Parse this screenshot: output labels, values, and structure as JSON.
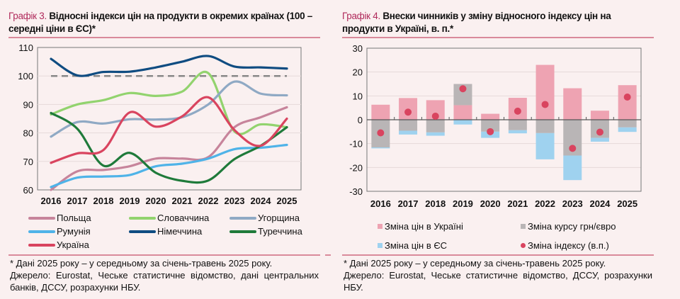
{
  "left": {
    "title_num": "Графік 3.",
    "title": "Відносні індекси цін на продукти в окремих країнах (100 – середні ціни в ЄС)*",
    "note": "* Дані 2025 року – у середньому за січень-травень 2025 року.",
    "source": "Джерело: Eurostat, Чеське статистичне відомство, дані центральних банків, ДССУ, розрахунки НБУ."
  },
  "right": {
    "title_num": "Графік 4.",
    "title": "Внески чинників у зміну відносного індексу цін на продукти в Україні, в. п.*",
    "note": "* Дані 2025 року – у середньому за січень-травень 2025 року.",
    "source": "Джерело: Eurostat, Чеське статистичне відомство, ДССУ, розрахунки НБУ."
  },
  "chart_data": [
    {
      "type": "line",
      "categories": [
        "2016",
        "2017",
        "2018",
        "2019",
        "2020",
        "2021",
        "2022",
        "2023",
        "2024",
        "2025"
      ],
      "ylim": [
        60,
        110
      ],
      "yticks": [
        "60",
        "70",
        "80",
        "90",
        "100",
        "110"
      ],
      "reference_line": 100,
      "grid": true,
      "legend_position": "bottom",
      "series": [
        {
          "name": "Польща",
          "color": "#c7849b",
          "values": [
            60,
            66.5,
            67,
            68.3,
            71,
            71,
            71.5,
            82,
            85.5,
            89
          ]
        },
        {
          "name": "Словаччина",
          "color": "#92d36e",
          "values": [
            86.5,
            90,
            91.5,
            94,
            93,
            94.5,
            101,
            80.5,
            83,
            82
          ]
        },
        {
          "name": "Угорщина",
          "color": "#8fa9c4",
          "values": [
            78.7,
            83.8,
            83.3,
            84.8,
            84.7,
            85.5,
            90,
            98,
            93.8,
            93.2
          ]
        },
        {
          "name": "Румунія",
          "color": "#4fb3e8",
          "values": [
            61,
            64.3,
            64.7,
            65.2,
            68.3,
            69.2,
            71,
            74.3,
            74.8,
            75.8
          ]
        },
        {
          "name": "Німеччина",
          "color": "#0f4c81",
          "values": [
            106,
            100.2,
            101.4,
            101.5,
            103,
            105,
            107,
            103.3,
            103,
            102.6
          ]
        },
        {
          "name": "Туреччина",
          "color": "#1f7a3a",
          "values": [
            87,
            81.5,
            68.5,
            73,
            66,
            63.2,
            63.3,
            70.8,
            75.5,
            82
          ]
        },
        {
          "name": "Україна",
          "color": "#d9445f",
          "values": [
            69.5,
            72.8,
            74,
            87.2,
            82.2,
            85.8,
            92.5,
            81,
            75.5,
            85
          ]
        }
      ]
    },
    {
      "type": "bar",
      "stacked": true,
      "categories": [
        "2016",
        "2017",
        "2018",
        "2019",
        "2020",
        "2021",
        "2022",
        "2023",
        "2024",
        "2025"
      ],
      "ylim": [
        -30,
        30
      ],
      "yticks": [
        "-30",
        "-20",
        "-10",
        "0",
        "10",
        "20",
        "30"
      ],
      "grid": true,
      "legend_position": "bottom",
      "series": [
        {
          "name": "Зміна цін в Україні",
          "color": "#eea3b2",
          "values": [
            6.3,
            9.1,
            8.2,
            6.1,
            2.5,
            9.2,
            23,
            13.2,
            3.8,
            14.5
          ]
        },
        {
          "name": "Зміна курсу грн/євро",
          "color": "#b9b5b6",
          "values": [
            -11.6,
            -4.6,
            -5.3,
            8.9,
            -5,
            -4.4,
            -5.6,
            -15,
            -7.6,
            -3.2
          ]
        },
        {
          "name": "Зміна цін в ЄС",
          "color": "#9fd2ef",
          "values": [
            -0.4,
            -1.6,
            -1.4,
            -2,
            -2.6,
            -1.3,
            -11,
            -10.3,
            -1.6,
            -1.9
          ]
        },
        {
          "name": "Зміна індексу (в.п.)",
          "type": "scatter",
          "color": "#d9445f",
          "values": [
            -5.5,
            3.2,
            1.5,
            13,
            -5,
            3.6,
            6.4,
            -12,
            -5.2,
            9.5
          ]
        }
      ]
    }
  ]
}
